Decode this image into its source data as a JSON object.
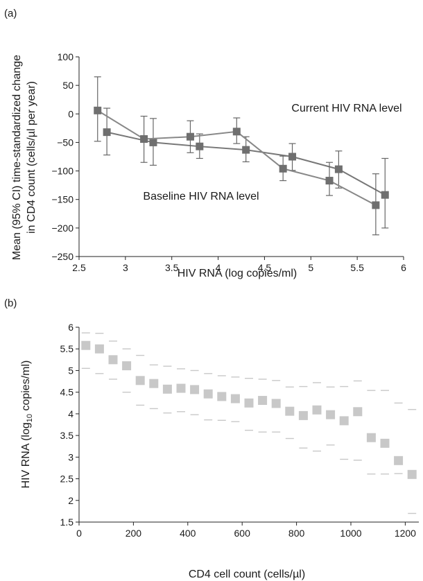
{
  "chart_data": [
    {
      "panel": "(a)",
      "type": "line",
      "xlabel": "HIV RNA (log copies/ml)",
      "ylabel_lines": [
        "Mean (95% CI) time-standardized change",
        "in CD4 count (cells/µl per year)"
      ],
      "xlim": [
        2.5,
        6
      ],
      "ylim": [
        -250,
        100
      ],
      "xticks": [
        "2.5",
        "3",
        "3.5",
        "4",
        "4.5",
        "5",
        "5.5",
        "6"
      ],
      "yticks": [
        "100",
        "50",
        "0",
        "−50",
        "−100",
        "−150",
        "−200",
        "−250"
      ],
      "colors": {
        "current": "#777777",
        "baseline": "#888888",
        "label_current": "#7d7d7d",
        "label_baseline": "#a9a9a9"
      },
      "series": [
        {
          "name": "Current HIV RNA level",
          "x": [
            2.8,
            3.3,
            3.8,
            4.3,
            4.8,
            5.3,
            5.8
          ],
          "y": [
            -32,
            -50,
            -57,
            -63,
            -75,
            -97,
            -142
          ],
          "lower": [
            -72,
            -90,
            -78,
            -84,
            -99,
            -130,
            -200
          ],
          "upper": [
            10,
            -8,
            -35,
            -40,
            -52,
            -65,
            -78
          ]
        },
        {
          "name": "Baseline HIV RNA level",
          "x": [
            2.7,
            3.2,
            3.7,
            4.2,
            4.7,
            5.2,
            5.7
          ],
          "y": [
            6,
            -44,
            -40,
            -31,
            -96,
            -117,
            -160
          ],
          "lower": [
            -48,
            -85,
            -68,
            -52,
            -117,
            -143,
            -212
          ],
          "upper": [
            65,
            -4,
            -12,
            -7,
            -74,
            -85,
            -105
          ]
        }
      ]
    },
    {
      "panel": "(b)",
      "type": "scatter",
      "xlabel": "CD4 cell count (cells/µl)",
      "ylabel_pre": "HIV RNA (log",
      "ylabel_sub": "10",
      "ylabel_post": " copies/ml)",
      "xlim": [
        0,
        1250
      ],
      "ylim": [
        1.5,
        6
      ],
      "xticks": [
        "0",
        "200",
        "400",
        "600",
        "800",
        "1000",
        "1200"
      ],
      "xtick_values": [
        0,
        200,
        400,
        600,
        800,
        1000,
        1200
      ],
      "yticks": [
        "6",
        "5.5",
        "5",
        "4.5",
        "4",
        "3.5",
        "3",
        "2.5",
        "2",
        "1.5"
      ],
      "colors": {
        "point": "#c8c8c8",
        "bound": "#c8c8c8"
      },
      "x": [
        25,
        75,
        125,
        175,
        225,
        275,
        325,
        375,
        425,
        475,
        525,
        575,
        625,
        675,
        725,
        775,
        825,
        875,
        925,
        975,
        1025,
        1075,
        1125,
        1175,
        1225
      ],
      "y": [
        5.58,
        5.5,
        5.25,
        5.11,
        4.77,
        4.7,
        4.57,
        4.59,
        4.56,
        4.46,
        4.4,
        4.35,
        4.25,
        4.31,
        4.24,
        4.06,
        3.96,
        4.09,
        3.98,
        3.84,
        4.05,
        3.45,
        3.32,
        2.92,
        2.6
      ],
      "upper": [
        5.87,
        5.86,
        5.68,
        5.5,
        5.35,
        5.13,
        5.1,
        5.04,
        5.0,
        4.93,
        4.88,
        4.85,
        4.82,
        4.8,
        4.77,
        4.62,
        4.63,
        4.72,
        4.62,
        4.63,
        4.76,
        4.54,
        4.54,
        4.25,
        4.1
      ],
      "lower": [
        5.05,
        4.93,
        4.8,
        4.5,
        4.2,
        4.12,
        4.02,
        4.05,
        3.98,
        3.86,
        3.85,
        3.82,
        3.62,
        3.58,
        3.58,
        3.43,
        3.21,
        3.14,
        3.28,
        2.95,
        2.93,
        2.61,
        2.61,
        2.62,
        1.7
      ]
    }
  ]
}
